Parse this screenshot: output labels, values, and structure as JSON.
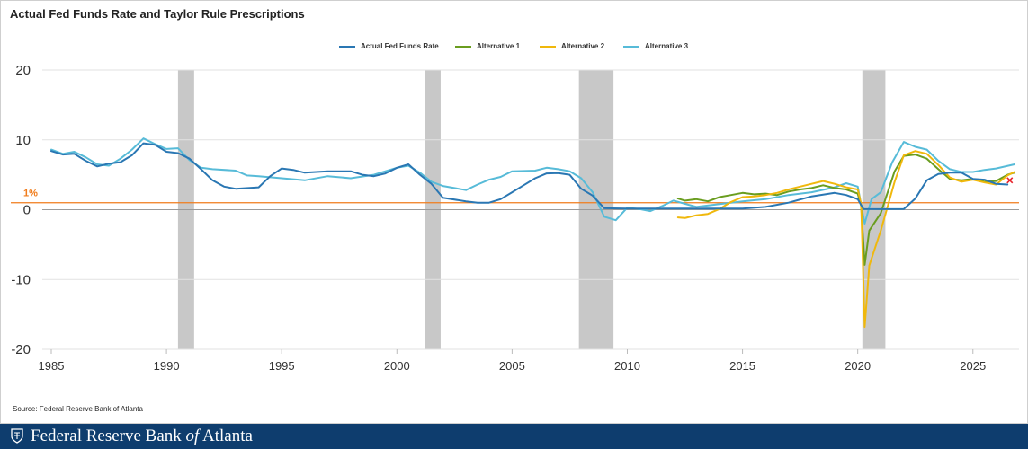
{
  "title": "Actual Fed Funds Rate and Taylor Rule Prescriptions",
  "source": "Source: Federal Reserve Bank of Atlanta",
  "footer": {
    "pre": "Federal Reserve Bank",
    "of": "of",
    "post": "Atlanta"
  },
  "colors": {
    "actual": "#2a77b3",
    "alt1": "#6a9d1f",
    "alt2": "#f0b80c",
    "alt3": "#57bbd8",
    "ref": "#f07c1c",
    "recession": "#c8c8c8",
    "footer": "#0e3d6e"
  },
  "chart_data": {
    "type": "line",
    "title": "Actual Fed Funds Rate and Taylor Rule Prescriptions",
    "xlim": [
      1985,
      2027
    ],
    "ylim": [
      -20,
      20
    ],
    "x_ticks": [
      "1985",
      "1990",
      "1995",
      "2000",
      "2005",
      "2010",
      "2015",
      "2020",
      "2025"
    ],
    "y_ticks": [
      "20",
      "10",
      "0",
      "-10",
      "-20"
    ],
    "grid": "horizontal",
    "legend_position": "top",
    "reference_line": {
      "value": 1,
      "label": "1%"
    },
    "recessions": [
      [
        1990.5,
        1991.2
      ],
      [
        2001.2,
        2001.9
      ],
      [
        2007.9,
        2009.4
      ],
      [
        2020.2,
        2021.2
      ]
    ],
    "series": [
      {
        "name": "Actual Fed Funds Rate",
        "color": "#2a77b3",
        "points": [
          [
            1985,
            8.4
          ],
          [
            1985.5,
            7.9
          ],
          [
            1986,
            8.0
          ],
          [
            1986.5,
            7.0
          ],
          [
            1987,
            6.2
          ],
          [
            1987.5,
            6.6
          ],
          [
            1988,
            6.8
          ],
          [
            1988.5,
            7.8
          ],
          [
            1989,
            9.5
          ],
          [
            1989.5,
            9.3
          ],
          [
            1990,
            8.3
          ],
          [
            1990.5,
            8.1
          ],
          [
            1991,
            7.3
          ],
          [
            1991.5,
            5.8
          ],
          [
            1992,
            4.2
          ],
          [
            1992.5,
            3.3
          ],
          [
            1993,
            3.0
          ],
          [
            1994,
            3.2
          ],
          [
            1994.5,
            4.8
          ],
          [
            1995,
            5.9
          ],
          [
            1995.5,
            5.7
          ],
          [
            1996,
            5.3
          ],
          [
            1997,
            5.5
          ],
          [
            1998,
            5.5
          ],
          [
            1998.5,
            5.0
          ],
          [
            1999,
            4.8
          ],
          [
            1999.5,
            5.2
          ],
          [
            2000,
            6.0
          ],
          [
            2000.5,
            6.5
          ],
          [
            2001,
            5.0
          ],
          [
            2001.5,
            3.7
          ],
          [
            2002,
            1.7
          ],
          [
            2003,
            1.2
          ],
          [
            2003.5,
            1.0
          ],
          [
            2004,
            1.0
          ],
          [
            2004.5,
            1.5
          ],
          [
            2005,
            2.5
          ],
          [
            2005.5,
            3.5
          ],
          [
            2006,
            4.5
          ],
          [
            2006.5,
            5.2
          ],
          [
            2007,
            5.25
          ],
          [
            2007.5,
            5.0
          ],
          [
            2008,
            3.0
          ],
          [
            2008.5,
            2.0
          ],
          [
            2009,
            0.2
          ],
          [
            2010,
            0.15
          ],
          [
            2012,
            0.15
          ],
          [
            2015,
            0.15
          ],
          [
            2016,
            0.4
          ],
          [
            2017,
            1.0
          ],
          [
            2018,
            1.9
          ],
          [
            2019,
            2.4
          ],
          [
            2019.5,
            2.1
          ],
          [
            2020,
            1.5
          ],
          [
            2020.25,
            0.1
          ],
          [
            2021,
            0.08
          ],
          [
            2022,
            0.1
          ],
          [
            2022.5,
            1.6
          ],
          [
            2023,
            4.2
          ],
          [
            2023.5,
            5.1
          ],
          [
            2024,
            5.3
          ],
          [
            2024.5,
            5.3
          ],
          [
            2025,
            4.4
          ],
          [
            2025.5,
            4.3
          ],
          [
            2026,
            3.7
          ],
          [
            2026.5,
            3.6
          ]
        ]
      },
      {
        "name": "Alternative 1",
        "color": "#6a9d1f",
        "points": [
          [
            2012.2,
            1.6
          ],
          [
            2012.5,
            1.3
          ],
          [
            2013,
            1.5
          ],
          [
            2013.5,
            1.2
          ],
          [
            2014,
            1.8
          ],
          [
            2014.5,
            2.1
          ],
          [
            2015,
            2.4
          ],
          [
            2015.5,
            2.2
          ],
          [
            2016,
            2.3
          ],
          [
            2016.5,
            2.1
          ],
          [
            2017,
            2.6
          ],
          [
            2017.5,
            2.9
          ],
          [
            2018,
            3.1
          ],
          [
            2018.5,
            3.5
          ],
          [
            2019,
            3.1
          ],
          [
            2019.5,
            2.9
          ],
          [
            2020,
            2.3
          ],
          [
            2020.15,
            0.5
          ],
          [
            2020.3,
            -7.9
          ],
          [
            2020.5,
            -3.0
          ],
          [
            2021,
            -0.5
          ],
          [
            2021.3,
            2.5
          ],
          [
            2021.6,
            5.5
          ],
          [
            2022,
            7.7
          ],
          [
            2022.5,
            7.9
          ],
          [
            2023,
            7.3
          ],
          [
            2023.5,
            5.8
          ],
          [
            2024,
            4.4
          ],
          [
            2024.5,
            4.2
          ],
          [
            2025,
            4.4
          ],
          [
            2025.5,
            4.0
          ],
          [
            2026,
            4.1
          ],
          [
            2026.5,
            5.0
          ],
          [
            2026.8,
            5.3
          ]
        ]
      },
      {
        "name": "Alternative 2",
        "color": "#f0b80c",
        "points": [
          [
            2012.2,
            -1.1
          ],
          [
            2012.5,
            -1.2
          ],
          [
            2013,
            -0.8
          ],
          [
            2013.5,
            -0.6
          ],
          [
            2014,
            0.1
          ],
          [
            2014.5,
            1.1
          ],
          [
            2015,
            1.8
          ],
          [
            2015.5,
            1.9
          ],
          [
            2016,
            2.1
          ],
          [
            2016.5,
            2.4
          ],
          [
            2017,
            2.9
          ],
          [
            2017.5,
            3.3
          ],
          [
            2018,
            3.7
          ],
          [
            2018.5,
            4.1
          ],
          [
            2019,
            3.7
          ],
          [
            2019.5,
            3.2
          ],
          [
            2020,
            2.9
          ],
          [
            2020.15,
            0.8
          ],
          [
            2020.3,
            -16.8
          ],
          [
            2020.5,
            -8.0
          ],
          [
            2021,
            -3.0
          ],
          [
            2021.3,
            0.5
          ],
          [
            2021.6,
            4.0
          ],
          [
            2022,
            7.8
          ],
          [
            2022.5,
            8.4
          ],
          [
            2023,
            8.0
          ],
          [
            2023.5,
            6.4
          ],
          [
            2024,
            4.6
          ],
          [
            2024.5,
            4.0
          ],
          [
            2025,
            4.3
          ],
          [
            2025.5,
            3.9
          ],
          [
            2026,
            3.6
          ],
          [
            2026.5,
            4.9
          ],
          [
            2026.8,
            5.4
          ]
        ]
      },
      {
        "name": "Alternative 3",
        "color": "#57bbd8",
        "points": [
          [
            1985,
            8.6
          ],
          [
            1985.5,
            8.0
          ],
          [
            1986,
            8.3
          ],
          [
            1986.5,
            7.5
          ],
          [
            1987,
            6.5
          ],
          [
            1987.5,
            6.3
          ],
          [
            1988,
            7.3
          ],
          [
            1988.5,
            8.6
          ],
          [
            1989,
            10.2
          ],
          [
            1989.5,
            9.4
          ],
          [
            1990,
            8.7
          ],
          [
            1990.5,
            8.8
          ],
          [
            1991,
            7.1
          ],
          [
            1991.5,
            6.0
          ],
          [
            1992,
            5.8
          ],
          [
            1993,
            5.6
          ],
          [
            1993.5,
            4.9
          ],
          [
            1994,
            4.8
          ],
          [
            1995,
            4.5
          ],
          [
            1996,
            4.2
          ],
          [
            1997,
            4.8
          ],
          [
            1998,
            4.5
          ],
          [
            1999,
            5.0
          ],
          [
            2000,
            6.0
          ],
          [
            2000.5,
            6.3
          ],
          [
            2001,
            5.3
          ],
          [
            2001.5,
            4.0
          ],
          [
            2002,
            3.4
          ],
          [
            2003,
            2.8
          ],
          [
            2003.5,
            3.6
          ],
          [
            2004,
            4.3
          ],
          [
            2004.5,
            4.7
          ],
          [
            2005,
            5.5
          ],
          [
            2006,
            5.6
          ],
          [
            2006.5,
            6.0
          ],
          [
            2007,
            5.8
          ],
          [
            2007.5,
            5.5
          ],
          [
            2008,
            4.5
          ],
          [
            2008.5,
            2.5
          ],
          [
            2009,
            -1.0
          ],
          [
            2009.5,
            -1.5
          ],
          [
            2010,
            0.3
          ],
          [
            2010.5,
            0.1
          ],
          [
            2011,
            -0.2
          ],
          [
            2011.5,
            0.5
          ],
          [
            2012,
            1.3
          ],
          [
            2013,
            0.4
          ],
          [
            2014,
            0.8
          ],
          [
            2015,
            1.2
          ],
          [
            2016,
            1.5
          ],
          [
            2017,
            2.1
          ],
          [
            2018,
            2.5
          ],
          [
            2019,
            3.2
          ],
          [
            2019.5,
            3.8
          ],
          [
            2020,
            3.3
          ],
          [
            2020.3,
            -2.0
          ],
          [
            2020.6,
            1.5
          ],
          [
            2021,
            2.5
          ],
          [
            2021.5,
            6.8
          ],
          [
            2022,
            9.7
          ],
          [
            2022.5,
            9.0
          ],
          [
            2023,
            8.6
          ],
          [
            2023.5,
            7.0
          ],
          [
            2024,
            5.8
          ],
          [
            2024.5,
            5.4
          ],
          [
            2025,
            5.4
          ],
          [
            2025.5,
            5.7
          ],
          [
            2026,
            5.9
          ],
          [
            2026.8,
            6.5
          ]
        ]
      }
    ],
    "marker": {
      "x": 2026.6,
      "y": 4.2,
      "symbol": "x",
      "color": "#e8242c"
    }
  }
}
